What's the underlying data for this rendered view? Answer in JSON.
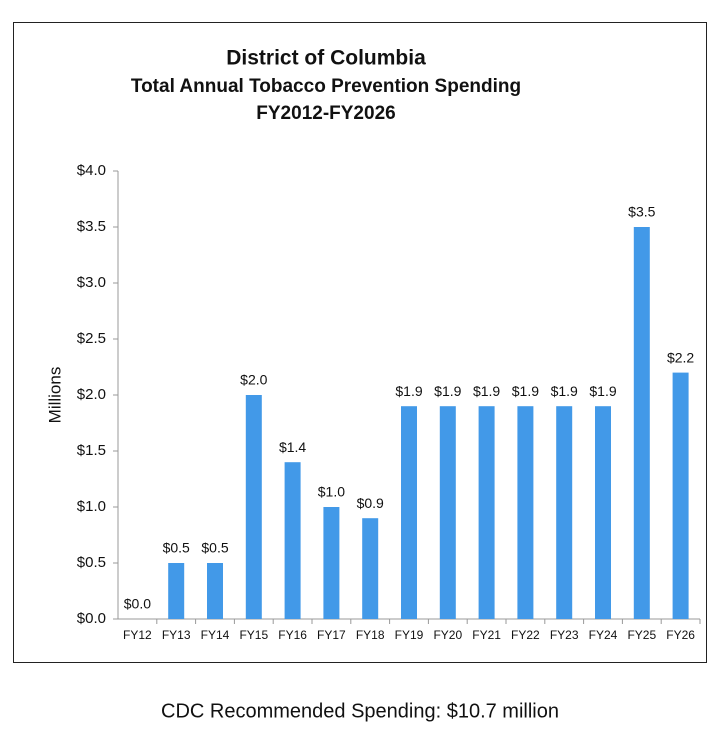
{
  "chart_data": {
    "type": "bar",
    "title": [
      "District of Columbia",
      "Total Annual Tobacco Prevention Spending",
      "FY2012-FY2026"
    ],
    "y_axis_label": "Millions",
    "categories": [
      "FY12",
      "FY13",
      "FY14",
      "FY15",
      "FY16",
      "FY17",
      "FY18",
      "FY19",
      "FY20",
      "FY21",
      "FY22",
      "FY23",
      "FY24",
      "FY25",
      "FY26"
    ],
    "values": [
      0,
      0.5,
      0.5,
      2.0,
      1.4,
      1.0,
      0.9,
      1.9,
      1.9,
      1.9,
      1.9,
      1.9,
      1.9,
      3.5,
      2.2
    ],
    "value_labels": [
      "$0.0",
      "$0.5",
      "$0.5",
      "$2.0",
      "$1.4",
      "$1.0",
      "$0.9",
      "$1.9",
      "$1.9",
      "$1.9",
      "$1.9",
      "$1.9",
      "$1.9",
      "$3.5",
      "$2.2"
    ],
    "color": "#4299e8",
    "ylim": [
      0,
      4
    ],
    "yticks": [
      {
        "value": 0,
        "label": "$0.0"
      },
      {
        "value": 0.5,
        "label": "$0.5"
      },
      {
        "value": 1,
        "label": "$1.0"
      },
      {
        "value": 1.5,
        "label": "$1.5"
      },
      {
        "value": 2,
        "label": "$2.0"
      },
      {
        "value": 2.5,
        "label": "$2.5"
      },
      {
        "value": 3,
        "label": "$3.0"
      },
      {
        "value": 3.5,
        "label": "$3.5"
      },
      {
        "value": 4,
        "label": "$4.0"
      }
    ],
    "grid": false,
    "annotation": "CDC Recommended Spending: $10.7 million"
  }
}
